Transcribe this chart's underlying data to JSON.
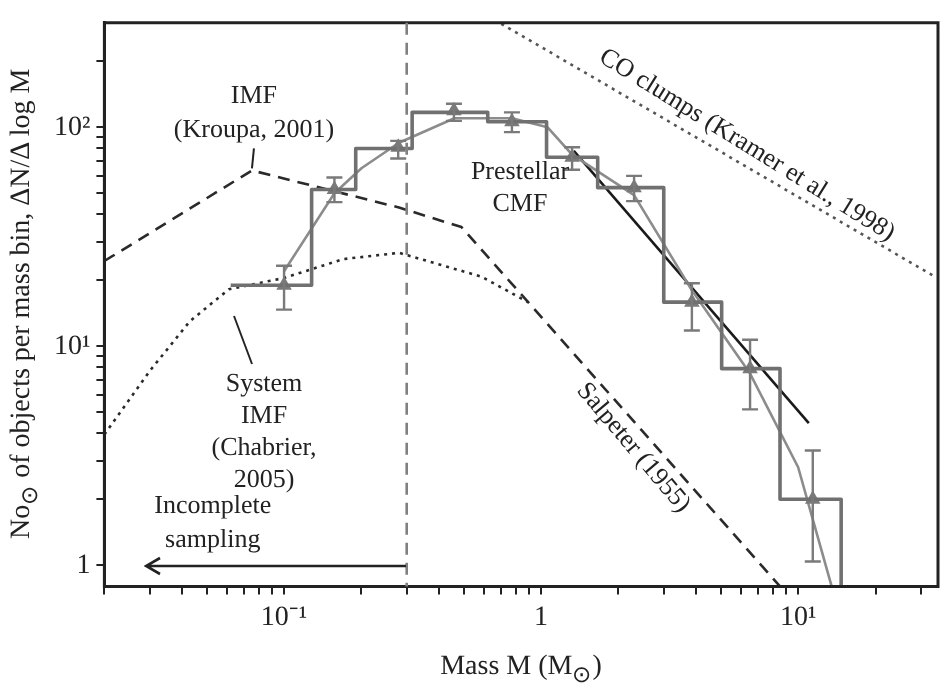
{
  "chart_data": {
    "type": "line",
    "xlabel": "Mass M (M$_{⊙}$)",
    "ylabel": "No$_{⊙}$ of objects per mass bin, ΔN/Δ log M",
    "log": "xy",
    "grid": false,
    "legend": false,
    "marker": "none",
    "line_style": "solid",
    "xlim": [
      0.02,
      35
    ],
    "ylim": [
      0.8,
      300
    ],
    "xticks": [
      {
        "value": 0.02,
        "label": null
      },
      {
        "value": 0.03,
        "label": null
      },
      {
        "value": 0.04,
        "label": null
      },
      {
        "value": 0.05,
        "label": null
      },
      {
        "value": 0.06,
        "label": null
      },
      {
        "value": 0.07,
        "label": null
      },
      {
        "value": 0.08,
        "label": null
      },
      {
        "value": 0.09,
        "label": null
      },
      {
        "value": 0.1,
        "label": "10⁻¹"
      },
      {
        "value": 0.2,
        "label": null
      },
      {
        "value": 0.3,
        "label": null
      },
      {
        "value": 0.4,
        "label": null
      },
      {
        "value": 0.5,
        "label": null
      },
      {
        "value": 0.6,
        "label": null
      },
      {
        "value": 0.7,
        "label": null
      },
      {
        "value": 0.8,
        "label": null
      },
      {
        "value": 0.9,
        "label": null
      },
      1,
      {
        "value": 2,
        "label": null
      },
      {
        "value": 3,
        "label": null
      },
      {
        "value": 4,
        "label": null
      },
      {
        "value": 5,
        "label": null
      },
      {
        "value": 6,
        "label": null
      },
      {
        "value": 7,
        "label": null
      },
      {
        "value": 8,
        "label": null
      },
      {
        "value": 9,
        "label": null
      },
      {
        "value": 10,
        "label": "10¹"
      },
      {
        "value": 20,
        "label": null
      },
      {
        "value": 30,
        "label": null
      }
    ],
    "yticks": [
      1,
      {
        "value": 2,
        "label": null
      },
      {
        "value": 3,
        "label": null
      },
      {
        "value": 4,
        "label": null
      },
      {
        "value": 5,
        "label": null
      },
      {
        "value": 6,
        "label": null
      },
      {
        "value": 7,
        "label": null
      },
      {
        "value": 8,
        "label": null
      },
      {
        "value": 9,
        "label": null
      },
      {
        "value": 10,
        "label": "10¹"
      },
      {
        "value": 20,
        "label": null
      },
      {
        "value": 30,
        "label": null
      },
      {
        "value": 40,
        "label": null
      },
      {
        "value": 50,
        "label": null
      },
      {
        "value": 60,
        "label": null
      },
      {
        "value": 70,
        "label": null
      },
      {
        "value": 80,
        "label": null
      },
      {
        "value": 90,
        "label": null
      },
      {
        "value": 100,
        "label": "10²"
      },
      {
        "value": 200,
        "label": null
      }
    ],
    "series": [
      {
        "type": "histogram",
        "color": "#707070",
        "bins": [
          0.062,
          0.128,
          0.19,
          0.315,
          0.62,
          1.05,
          1.66,
          3.0,
          5.04,
          8.5,
          14.7
        ],
        "values": [
          19,
          52,
          80,
          117,
          106,
          73,
          53,
          15.9,
          7.9,
          2.0
        ]
      },
      {
        "type": "scatter",
        "color": "#7a7a7a",
        "marker": "triangle",
        "x": [
          0.1,
          0.157,
          0.278,
          0.458,
          0.77,
          1.32,
          2.3,
          3.86,
          6.5,
          11.4
        ],
        "values": [
          19,
          52,
          81,
          119,
          106,
          73,
          53,
          15.9,
          7.9,
          2.0
        ],
        "errors": [
          [
            14.7,
            23.3
          ],
          [
            45.5,
            59
          ],
          [
            72,
            86.7
          ],
          [
            107,
            128
          ],
          [
            95,
            117
          ],
          [
            64,
            81
          ],
          [
            46,
            60
          ],
          [
            11.8,
            19.4
          ],
          [
            5.15,
            10.7
          ],
          [
            1.04,
            3.34
          ]
        ]
      },
      {
        "color": "#8c8c8c",
        "x": [
          0.1,
          0.157,
          0.2,
          0.28,
          0.46,
          0.77,
          1.06,
          1.32,
          2.3,
          3.86,
          6.5,
          10,
          13.5
        ],
        "values": [
          22,
          50,
          65,
          85,
          110,
          110,
          100,
          75,
          49,
          18,
          7.5,
          2.8,
          0.8
        ]
      },
      {
        "color": "#1a1a1a",
        "x": [
          1.34,
          11
        ],
        "values": [
          78,
          4.45
        ]
      },
      {
        "color": "#2a2a2a",
        "line_style": "dashed",
        "x": [
          0.02,
          0.075,
          0.28,
          0.49,
          0.89,
          8.5
        ],
        "values": [
          24.5,
          63.5,
          43,
          35,
          15.9,
          0.8
        ]
      },
      {
        "color": "#2a2a2a",
        "line_style": "dotted",
        "x": [
          0.02,
          0.03,
          0.043,
          0.061,
          0.1,
          0.17,
          0.28,
          0.585,
          0.89
        ],
        "values": [
          3.95,
          7.7,
          13,
          18.2,
          20.5,
          25,
          26.7,
          20.8,
          15.9
        ]
      },
      {
        "color": "#555555",
        "line_style": "dotted",
        "x": [
          0.7,
          34
        ],
        "values": [
          297,
          20.8
        ]
      }
    ],
    "ref_lines": [
      {
        "axis": "x",
        "value": 0.3,
        "label": "Incomplete\nsampling",
        "color": "#808080",
        "line_style": "dashed"
      }
    ],
    "annotations": [
      {
        "text": "IMF\n(Kroupa, 2001)",
        "x": 0.075,
        "y": 63.5
      },
      "Prestellar\nCMF",
      "System\nIMF\n(Chabrier,\n2005)",
      {
        "text": "Salpeter (1955)",
        "x": 2.59,
        "y": 3.9
      },
      {
        "text": "CO clumps (Kramer et al., 1998)",
        "x": 5.78,
        "y": 70
      }
    ]
  }
}
